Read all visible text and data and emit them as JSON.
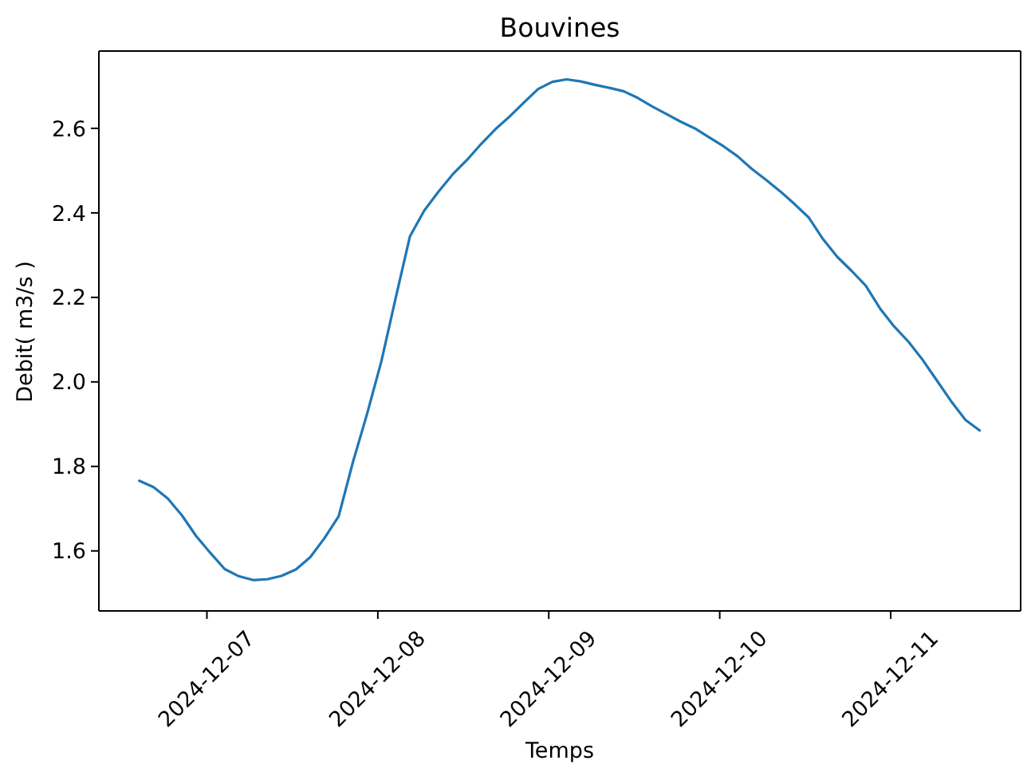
{
  "chart_data": {
    "type": "line",
    "title": "Bouvines",
    "xlabel": "Temps",
    "ylabel": "Debit( m3/s )",
    "x": [
      "2024-12-06T14:30",
      "2024-12-06T16:30",
      "2024-12-06T18:30",
      "2024-12-06T20:30",
      "2024-12-06T22:30",
      "2024-12-07T00:30",
      "2024-12-07T02:30",
      "2024-12-07T04:30",
      "2024-12-07T06:30",
      "2024-12-07T08:30",
      "2024-12-07T10:30",
      "2024-12-07T12:30",
      "2024-12-07T14:30",
      "2024-12-07T16:30",
      "2024-12-07T18:30",
      "2024-12-07T20:30",
      "2024-12-07T22:30",
      "2024-12-08T00:30",
      "2024-12-08T02:30",
      "2024-12-08T04:30",
      "2024-12-08T06:30",
      "2024-12-08T08:30",
      "2024-12-08T10:30",
      "2024-12-08T12:30",
      "2024-12-08T14:30",
      "2024-12-08T16:30",
      "2024-12-08T18:30",
      "2024-12-08T20:30",
      "2024-12-08T22:30",
      "2024-12-09T00:30",
      "2024-12-09T02:30",
      "2024-12-09T04:30",
      "2024-12-09T06:30",
      "2024-12-09T08:30",
      "2024-12-09T10:30",
      "2024-12-09T12:30",
      "2024-12-09T14:30",
      "2024-12-09T16:30",
      "2024-12-09T18:30",
      "2024-12-09T20:30",
      "2024-12-09T22:30",
      "2024-12-10T00:30",
      "2024-12-10T02:30",
      "2024-12-10T04:30",
      "2024-12-10T06:30",
      "2024-12-10T08:30",
      "2024-12-10T10:30",
      "2024-12-10T12:30",
      "2024-12-10T14:30",
      "2024-12-10T16:30",
      "2024-12-10T18:30",
      "2024-12-10T20:30",
      "2024-12-10T22:30",
      "2024-12-11T00:30",
      "2024-12-11T02:30",
      "2024-12-11T04:30",
      "2024-12-11T06:30",
      "2024-12-11T08:30",
      "2024-12-11T10:30",
      "2024-12-11T12:30"
    ],
    "values": [
      1.766,
      1.751,
      1.724,
      1.684,
      1.635,
      1.595,
      1.557,
      1.54,
      1.531,
      1.533,
      1.541,
      1.556,
      1.585,
      1.63,
      1.682,
      1.81,
      1.925,
      2.049,
      2.198,
      2.344,
      2.405,
      2.45,
      2.491,
      2.525,
      2.563,
      2.598,
      2.628,
      2.661,
      2.693,
      2.71,
      2.716,
      2.711,
      2.703,
      2.696,
      2.688,
      2.672,
      2.652,
      2.634,
      2.616,
      2.6,
      2.579,
      2.558,
      2.534,
      2.504,
      2.478,
      2.451,
      2.421,
      2.389,
      2.338,
      2.296,
      2.263,
      2.228,
      2.174,
      2.131,
      2.095,
      2.052,
      2.003,
      1.954,
      1.91,
      1.885
    ],
    "color": "#1f77b4",
    "xlim": [
      "2024-12-06T08:50",
      "2024-12-11T18:15"
    ],
    "xticks": [
      "2024-12-07",
      "2024-12-08",
      "2024-12-09",
      "2024-12-10",
      "2024-12-11"
    ],
    "ylim": [
      1.458,
      2.783
    ],
    "yticks": [
      1.6,
      1.8,
      {
        "value": 2,
        "label": "2.0"
      },
      2.2,
      2.4,
      2.6
    ]
  }
}
